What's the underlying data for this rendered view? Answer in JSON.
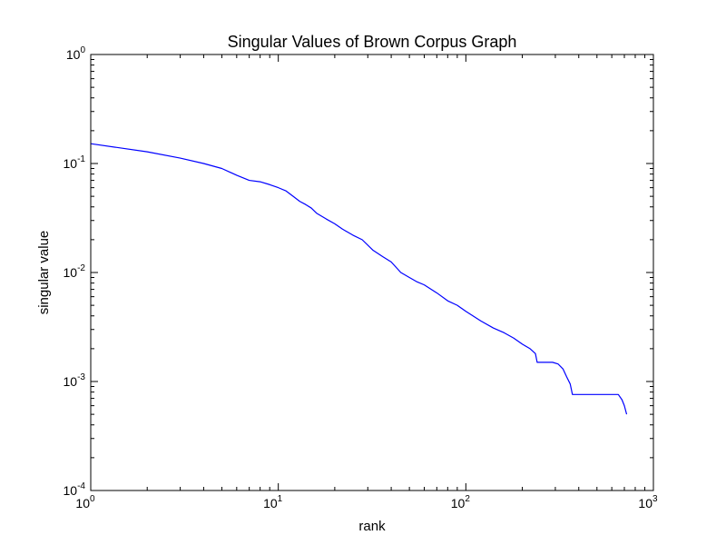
{
  "chart_data": {
    "type": "line",
    "title": "Singular Values of Brown Corpus Graph",
    "xlabel": "rank",
    "ylabel": "singular value",
    "xscale": "log",
    "yscale": "log",
    "xlim": [
      1,
      1000
    ],
    "ylim": [
      0.0001,
      1
    ],
    "grid": false,
    "legend": "none",
    "x_ticks": [
      {
        "value": 1,
        "base": "10",
        "exp": "0"
      },
      {
        "value": 10,
        "base": "10",
        "exp": "1"
      },
      {
        "value": 100,
        "base": "10",
        "exp": "2"
      },
      {
        "value": 1000,
        "base": "10",
        "exp": "3"
      }
    ],
    "y_ticks": [
      {
        "value": 1,
        "base": "10",
        "exp": "0"
      },
      {
        "value": 0.1,
        "base": "10",
        "exp": "-1"
      },
      {
        "value": 0.01,
        "base": "10",
        "exp": "-2"
      },
      {
        "value": 0.001,
        "base": "10",
        "exp": "-3"
      },
      {
        "value": 0.0001,
        "base": "10",
        "exp": "-4"
      }
    ],
    "series": [
      {
        "color": "#0000ff",
        "x": [
          1,
          2,
          3,
          4,
          5,
          6,
          7,
          8,
          9,
          10,
          11,
          12,
          13,
          14,
          15,
          16,
          18,
          20,
          22,
          25,
          28,
          32,
          36,
          40,
          45,
          50,
          55,
          60,
          70,
          80,
          90,
          100,
          120,
          140,
          160,
          180,
          200,
          220,
          235,
          240,
          260,
          290,
          310,
          330,
          345,
          360,
          370,
          400,
          500,
          600,
          650,
          680,
          700,
          720
        ],
        "y": [
          0.152,
          0.128,
          0.112,
          0.1,
          0.09,
          0.078,
          0.07,
          0.068,
          0.064,
          0.06,
          0.056,
          0.05,
          0.045,
          0.042,
          0.039,
          0.035,
          0.031,
          0.028,
          0.025,
          0.022,
          0.02,
          0.016,
          0.014,
          0.0125,
          0.01,
          0.009,
          0.0082,
          0.0077,
          0.0065,
          0.0055,
          0.005,
          0.0044,
          0.0036,
          0.0031,
          0.0028,
          0.0025,
          0.0022,
          0.002,
          0.0018,
          0.0015,
          0.0015,
          0.0015,
          0.00145,
          0.0013,
          0.0011,
          0.00095,
          0.00076,
          0.00076,
          0.00076,
          0.00076,
          0.00076,
          0.00068,
          0.0006,
          0.0005
        ]
      }
    ]
  }
}
